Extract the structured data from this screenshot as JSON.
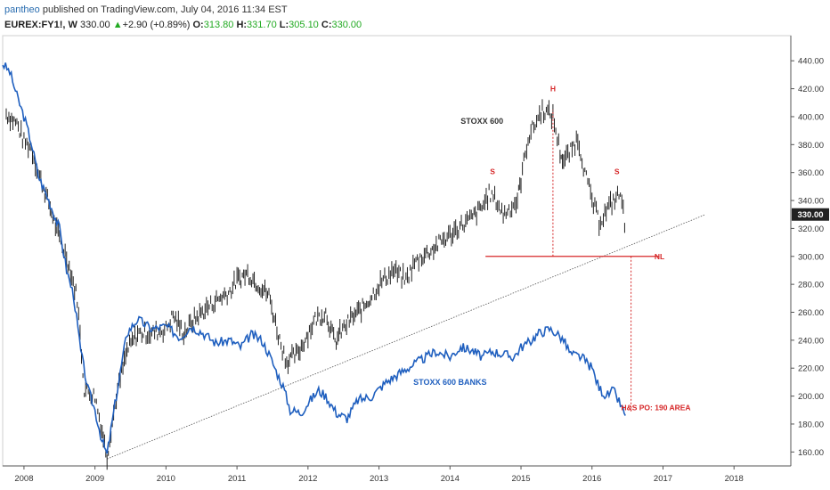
{
  "header": {
    "author": "pantheo",
    "published_text": "published on TradingView.com, July 04, 2016 11:34 EST",
    "symbol": "EUREX:FY1!, W",
    "last": "330.00",
    "change": "+2.90 (+0.89%)",
    "o_label": "O:",
    "o_value": "313.80",
    "h_label": "H:",
    "h_value": "331.70",
    "l_label": "L:",
    "l_value": "305.10",
    "c_label": "C:",
    "c_value": "330.00",
    "up_arrow": "▲"
  },
  "colors": {
    "price": "#222222",
    "banks": "#1f5fbf",
    "neckline": "#d62728",
    "annotation": "#d62728",
    "trendline": "#555555",
    "last_price_bg": "#222222"
  },
  "chart_data": {
    "type": "line",
    "title": "",
    "x_ticks": [
      "2008",
      "2009",
      "2010",
      "2011",
      "2012",
      "2013",
      "2014",
      "2015",
      "2016",
      "2017",
      "2018"
    ],
    "y_ticks": [
      "440.00",
      "420.00",
      "400.00",
      "380.00",
      "360.00",
      "340.00",
      "320.00",
      "300.00",
      "280.00",
      "260.00",
      "240.00",
      "220.00",
      "200.00",
      "180.00",
      "160.00"
    ],
    "ylim": [
      150,
      458
    ],
    "xlim": [
      2007.7,
      2018.8
    ],
    "last_price_label": "330.00",
    "series": [
      {
        "name": "STOXX 600",
        "x": [
          2007.75,
          2007.9,
          2008.0,
          2008.1,
          2008.2,
          2008.35,
          2008.5,
          2008.6,
          2008.75,
          2008.85,
          2009.0,
          2009.1,
          2009.17,
          2009.3,
          2009.45,
          2009.6,
          2009.8,
          2010.0,
          2010.1,
          2010.25,
          2010.4,
          2010.55,
          2010.75,
          2010.9,
          2011.0,
          2011.15,
          2011.3,
          2011.45,
          2011.6,
          2011.7,
          2011.85,
          2012.0,
          2012.1,
          2012.25,
          2012.38,
          2012.45,
          2012.6,
          2012.75,
          2012.9,
          2013.0,
          2013.2,
          2013.38,
          2013.5,
          2013.6,
          2013.75,
          2013.9,
          2014.0,
          2014.1,
          2014.3,
          2014.45,
          2014.55,
          2014.65,
          2014.75,
          2014.85,
          2014.95,
          2015.0,
          2015.1,
          2015.2,
          2015.3,
          2015.45,
          2015.55,
          2015.6,
          2015.7,
          2015.8,
          2015.9,
          2016.0,
          2016.1,
          2016.2,
          2016.3,
          2016.4,
          2016.48
        ],
        "y": [
          402,
          395,
          382,
          378,
          360,
          338,
          312,
          300,
          270,
          205,
          200,
          175,
          157,
          200,
          232,
          245,
          245,
          248,
          258,
          245,
          255,
          262,
          270,
          275,
          283,
          288,
          280,
          272,
          240,
          225,
          230,
          245,
          255,
          260,
          238,
          245,
          255,
          262,
          272,
          280,
          290,
          283,
          295,
          300,
          305,
          312,
          315,
          320,
          327,
          335,
          345,
          340,
          330,
          335,
          340,
          355,
          385,
          395,
          405,
          400,
          375,
          368,
          375,
          385,
          360,
          340,
          325,
          332,
          340,
          345,
          318
        ]
      },
      {
        "name": "STOXX 600 BANKS",
        "x": [
          2007.7,
          2007.8,
          2007.9,
          2008.0,
          2008.1,
          2008.2,
          2008.35,
          2008.5,
          2008.6,
          2008.7,
          2008.8,
          2008.9,
          2009.0,
          2009.1,
          2009.17,
          2009.3,
          2009.45,
          2009.6,
          2009.8,
          2010.0,
          2010.2,
          2010.35,
          2010.5,
          2010.7,
          2010.9,
          2011.05,
          2011.2,
          2011.35,
          2011.45,
          2011.55,
          2011.65,
          2011.75,
          2011.9,
          2012.0,
          2012.15,
          2012.25,
          2012.4,
          2012.55,
          2012.7,
          2012.9,
          2013.1,
          2013.25,
          2013.4,
          2013.6,
          2013.8,
          2014.0,
          2014.15,
          2014.3,
          2014.45,
          2014.6,
          2014.75,
          2014.9,
          2015.0,
          2015.1,
          2015.25,
          2015.4,
          2015.5,
          2015.6,
          2015.7,
          2015.85,
          2016.0,
          2016.1,
          2016.2,
          2016.3,
          2016.4,
          2016.47
        ],
        "y": [
          438,
          432,
          415,
          400,
          382,
          358,
          340,
          320,
          290,
          272,
          232,
          205,
          190,
          168,
          158,
          200,
          245,
          255,
          248,
          250,
          242,
          250,
          246,
          238,
          240,
          235,
          244,
          240,
          230,
          218,
          207,
          190,
          188,
          195,
          204,
          200,
          188,
          184,
          197,
          200,
          210,
          215,
          220,
          226,
          232,
          228,
          235,
          233,
          228,
          232,
          230,
          228,
          235,
          238,
          245,
          248,
          245,
          240,
          230,
          228,
          220,
          206,
          200,
          204,
          194,
          186
        ]
      }
    ],
    "annotations": [
      {
        "text": "STOXX 600",
        "x": 2014.45,
        "y": 395
      },
      {
        "text": "STOXX 600 BANKS",
        "x": 2014.0,
        "y": 208
      },
      {
        "text": "S",
        "x": 2014.6,
        "y": 359
      },
      {
        "text": "H",
        "x": 2015.45,
        "y": 418
      },
      {
        "text": "S",
        "x": 2016.35,
        "y": 359
      },
      {
        "text": "NL",
        "x": 2016.95,
        "y": 298
      },
      {
        "text": "H&S PO: 190 AREA",
        "x": 2016.9,
        "y": 190
      }
    ],
    "neckline": {
      "x1": 2014.5,
      "x2": 2016.95,
      "y": 300
    },
    "trendline": {
      "x1": 2009.17,
      "x2": 2017.6,
      "y1": 155,
      "y2": 330
    },
    "head_projection": {
      "x": 2015.45,
      "y1": 300,
      "y2": 405
    },
    "target_projection": {
      "x": 2016.55,
      "y1": 300,
      "y2": 188
    }
  }
}
